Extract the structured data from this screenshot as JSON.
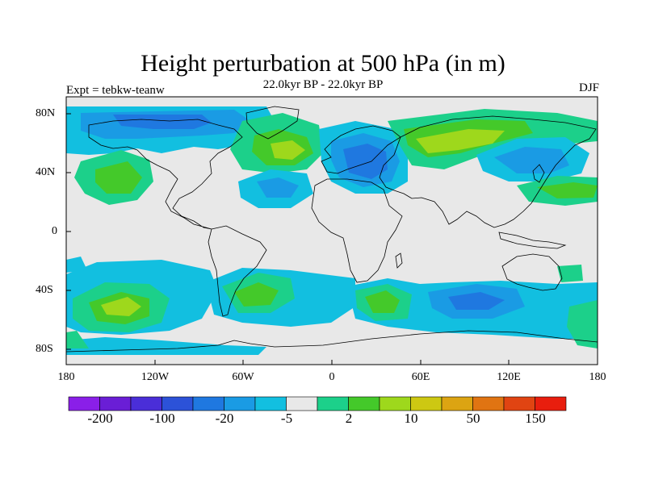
{
  "header": {
    "title": "Height perturbation at 500 hPa (in m)",
    "subtitle": "22.0kyr BP - 22.0kyr BP",
    "left_label": "Expt = tebkw-teanw",
    "right_label": "DJF"
  },
  "map": {
    "projection": "cylindrical equidistant",
    "lat_labels": [
      "80N",
      "40N",
      "0",
      "40S",
      "80S"
    ],
    "lon_labels": [
      "180",
      "120W",
      "60W",
      "0",
      "60E",
      "120E",
      "180"
    ],
    "background_color": "#e8e8e8",
    "coastline_color": "#000000"
  },
  "colorbar": {
    "colors": [
      "#8a1fe8",
      "#6a1ed6",
      "#4a2ed8",
      "#2c52d8",
      "#1f78e0",
      "#1a9be4",
      "#12bfe0",
      "#e8e8e8",
      "#1cd08a",
      "#44c92a",
      "#9ed81c",
      "#cdc812",
      "#dca412",
      "#e07412",
      "#e04412",
      "#e81e0e"
    ],
    "tick_labels": [
      "-200",
      "-100",
      "-20",
      "-5",
      "2",
      "10",
      "50",
      "150"
    ]
  }
}
